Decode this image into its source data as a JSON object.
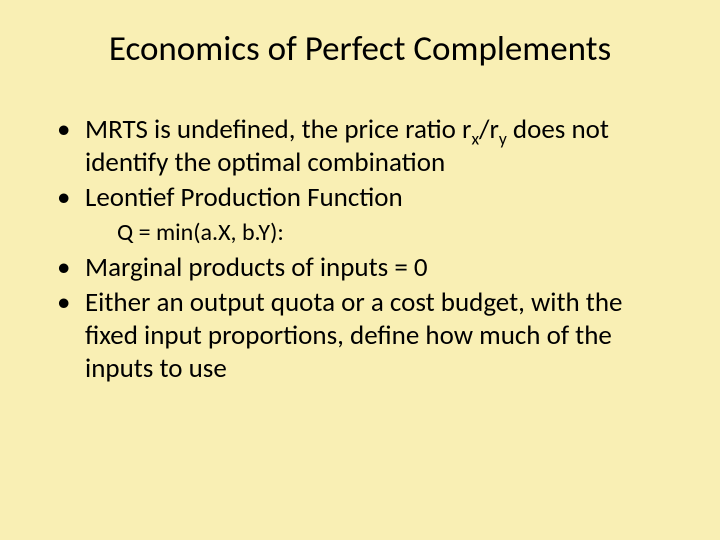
{
  "background_color": "#f9efb4",
  "text_color": "#000000",
  "title": {
    "text": "Economics of Perfect Complements",
    "fontsize": 35
  },
  "bullets": {
    "fontsize": 27,
    "sub_fontsize": 24,
    "b1_pre": "MRTS is undefined, the price ratio r",
    "b1_sub1": "x",
    "b1_mid": "/r",
    "b1_sub2": "y",
    "b1_post": " does not identify the optimal combination",
    "b2": "Leontief Production Function",
    "b2_sub": "Q = min(a.X, b.Y):",
    "b3": "Marginal products of inputs = 0",
    "b4": "Either an output quota or a cost budget, with the fixed input proportions, define how much of the inputs to use"
  }
}
